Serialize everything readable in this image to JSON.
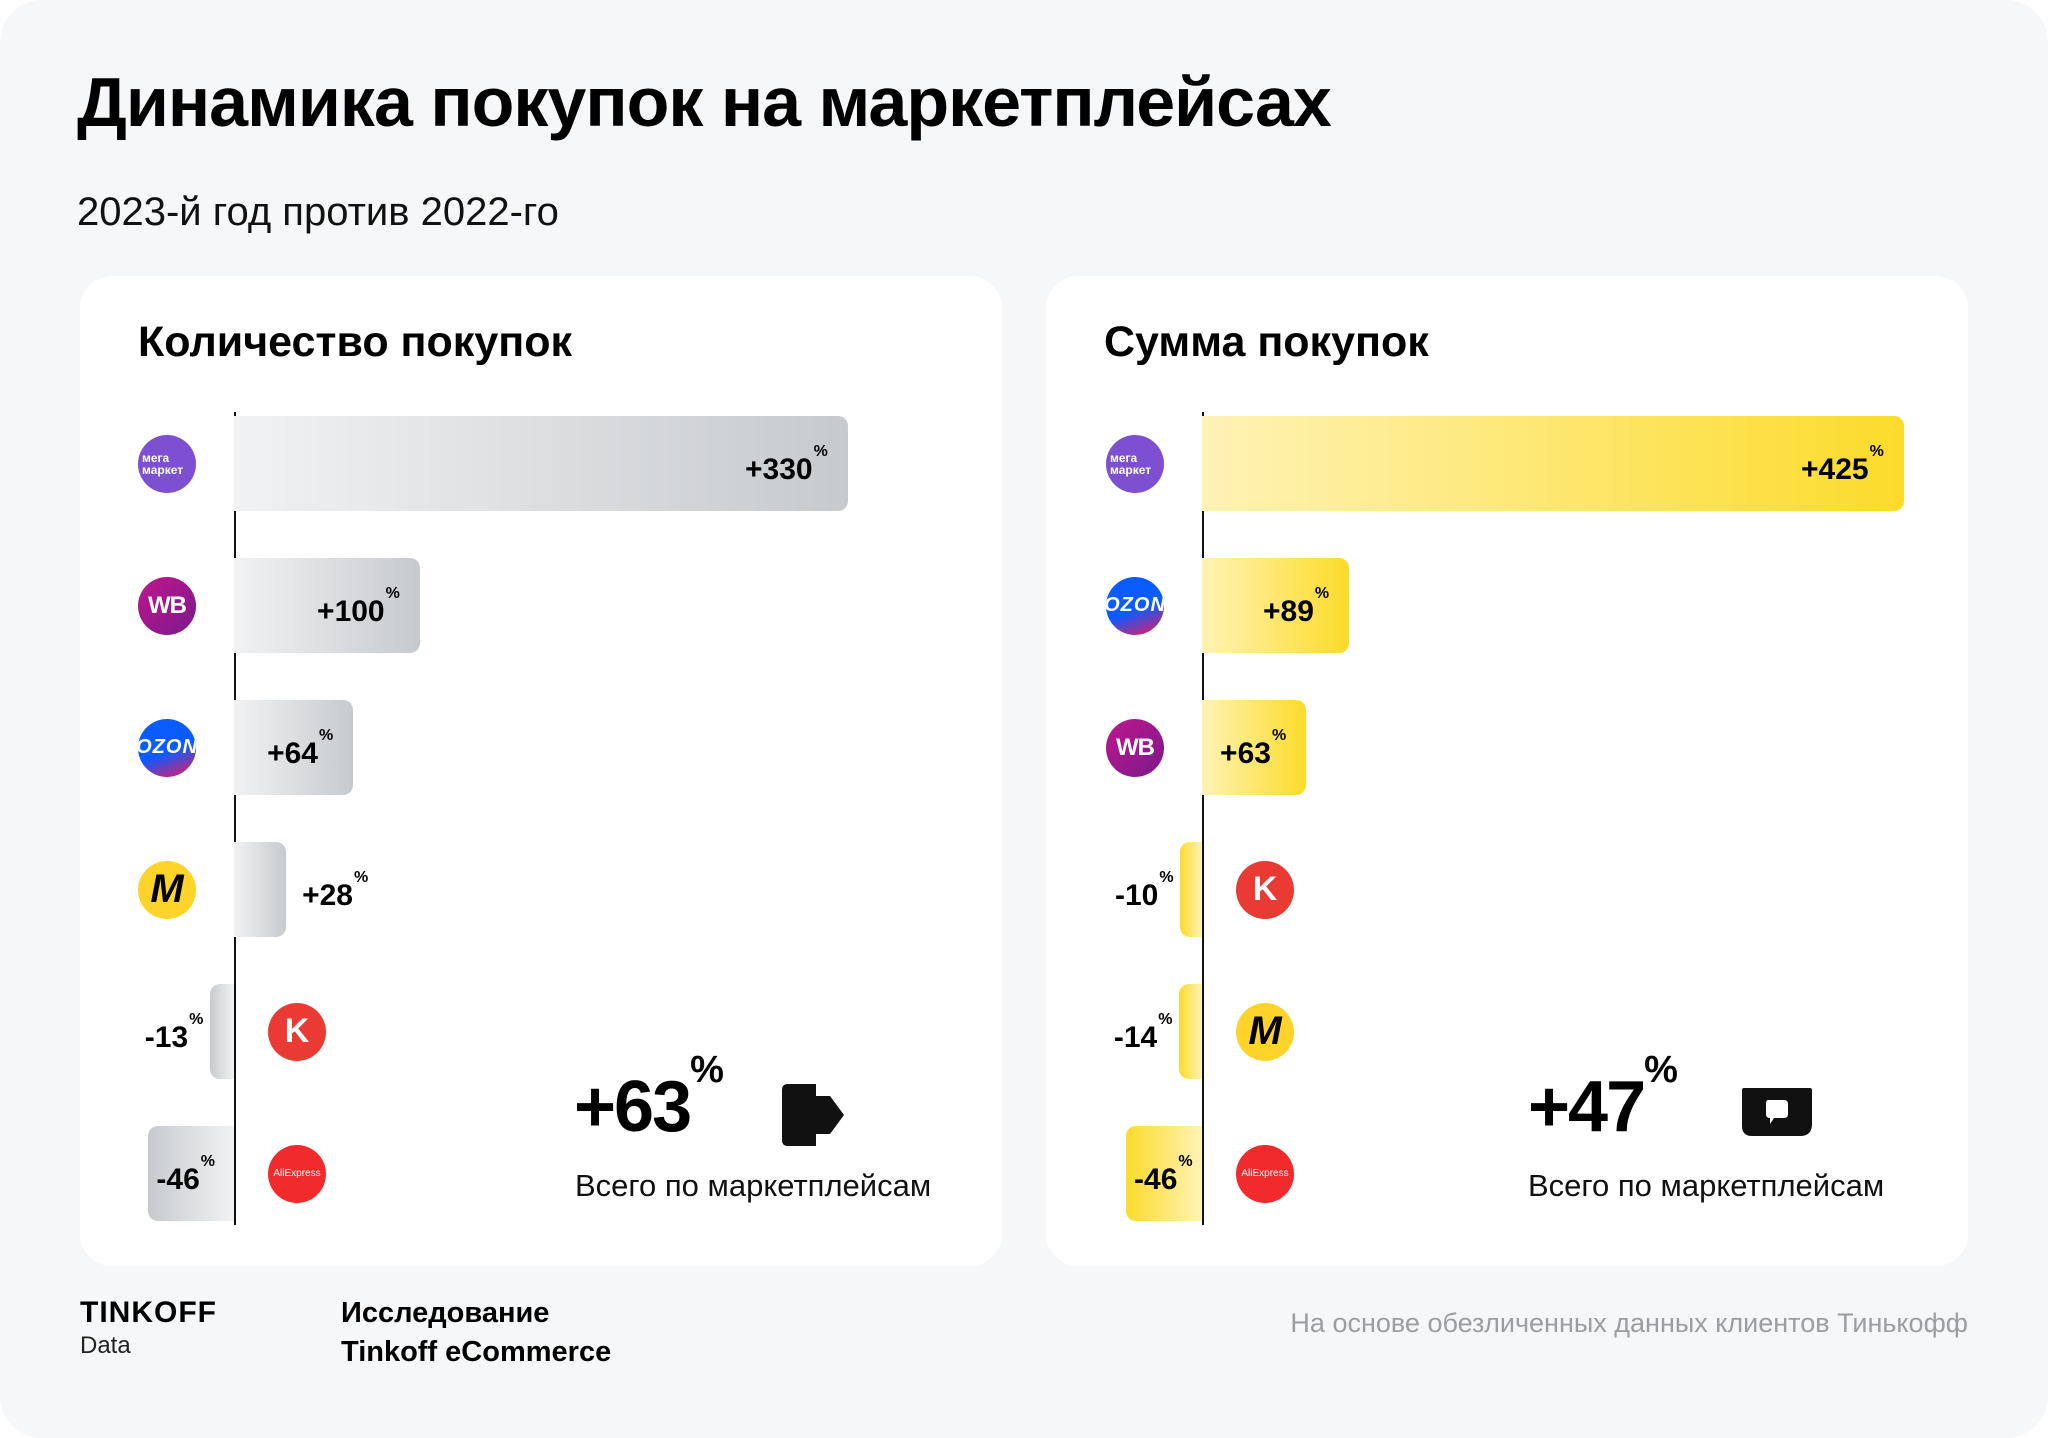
{
  "title": "Динамика покупок на маркетплейсах",
  "subtitle": "2023-й год против 2022-го",
  "chart_data": [
    {
      "type": "bar",
      "orientation": "horizontal",
      "title": "Количество покупок",
      "unit": "%",
      "bar_color": "#c7cacd",
      "categories": [
        "Мегамаркет",
        "Wildberries",
        "Ozon",
        "Яндекс Маркет",
        "КазаньЭкспресс",
        "AliExpress"
      ],
      "logos": [
        "megamarket-logo",
        "wb-logo",
        "ozon-logo",
        "yandex-market-logo",
        "kazanexpress-logo",
        "aliexpress-logo"
      ],
      "values": [
        330,
        100,
        64,
        28,
        -13,
        -46
      ],
      "labels": [
        "+330",
        "+100",
        "+64",
        "+28",
        "-13",
        "-46"
      ],
      "total": {
        "value": "+63",
        "unit": "%",
        "caption": "Всего по маркетплейсам",
        "icon": "tinkoff-arrow-icon"
      }
    },
    {
      "type": "bar",
      "orientation": "horizontal",
      "title": "Сумма покупок",
      "unit": "%",
      "bar_color": "#fcdb2a",
      "categories": [
        "Мегамаркет",
        "Ozon",
        "Wildberries",
        "КазаньЭкспресс",
        "Яндекс Маркет",
        "AliExpress"
      ],
      "logos": [
        "megamarket-logo",
        "ozon-logo",
        "wb-logo",
        "kazanexpress-logo",
        "yandex-market-logo",
        "aliexpress-logo"
      ],
      "values": [
        425,
        89,
        63,
        -10,
        -14,
        -46
      ],
      "labels": [
        "+425",
        "+89",
        "+63",
        "-10",
        "-14",
        "-46"
      ],
      "total": {
        "value": "+47",
        "unit": "%",
        "caption": "Всего по маркетплейсам",
        "icon": "tinkoff-wallet-icon"
      }
    }
  ],
  "logo_text": {
    "mega_line1": "мега",
    "mega_line2": "маркет",
    "wb": "WB",
    "ozon": "OZON",
    "ym": "M",
    "k": "K",
    "ali": "AliExpress"
  },
  "footer": {
    "brand": "TINKOFF",
    "brand_sub": "Data",
    "study_line1": "Исследование",
    "study_line2": "Tinkoff eCommerce",
    "note": "На основе обезличенных данных клиентов Тинькофф"
  }
}
